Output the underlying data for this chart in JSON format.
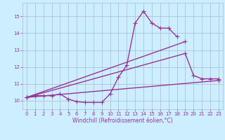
{
  "title": "",
  "xlabel": "Windchill (Refroidissement éolien,°C)",
  "ylabel": "",
  "background_color": "#cceeff",
  "grid_color": "#aabbcc",
  "line_color": "#993399",
  "xlim": [
    -0.5,
    23.5
  ],
  "ylim": [
    9.5,
    15.8
  ],
  "xticks": [
    0,
    1,
    2,
    3,
    4,
    5,
    6,
    7,
    8,
    9,
    10,
    11,
    12,
    13,
    14,
    15,
    16,
    17,
    18,
    19,
    20,
    21,
    22,
    23
  ],
  "yticks": [
    10,
    11,
    12,
    13,
    14,
    15
  ],
  "lines": [
    {
      "x": [
        0,
        1,
        2,
        3,
        4,
        5,
        6,
        7,
        8,
        9,
        10,
        11,
        12,
        13,
        14,
        15,
        16,
        17,
        18
      ],
      "y": [
        10.2,
        10.3,
        10.3,
        10.3,
        10.4,
        10.1,
        9.95,
        9.9,
        9.9,
        9.9,
        10.4,
        11.4,
        12.1,
        14.6,
        15.3,
        14.6,
        14.3,
        14.3,
        13.8
      ]
    },
    {
      "x": [
        0,
        19
      ],
      "y": [
        10.2,
        13.5
      ]
    },
    {
      "x": [
        0,
        19,
        20,
        21,
        22,
        23
      ],
      "y": [
        10.2,
        12.8,
        11.5,
        11.3,
        11.3,
        11.3
      ]
    },
    {
      "x": [
        0,
        23
      ],
      "y": [
        10.2,
        11.2
      ]
    }
  ],
  "marker": "+",
  "markersize": 4,
  "linewidth": 1.0,
  "axis_fontsize": 5.5,
  "tick_fontsize": 5.0
}
